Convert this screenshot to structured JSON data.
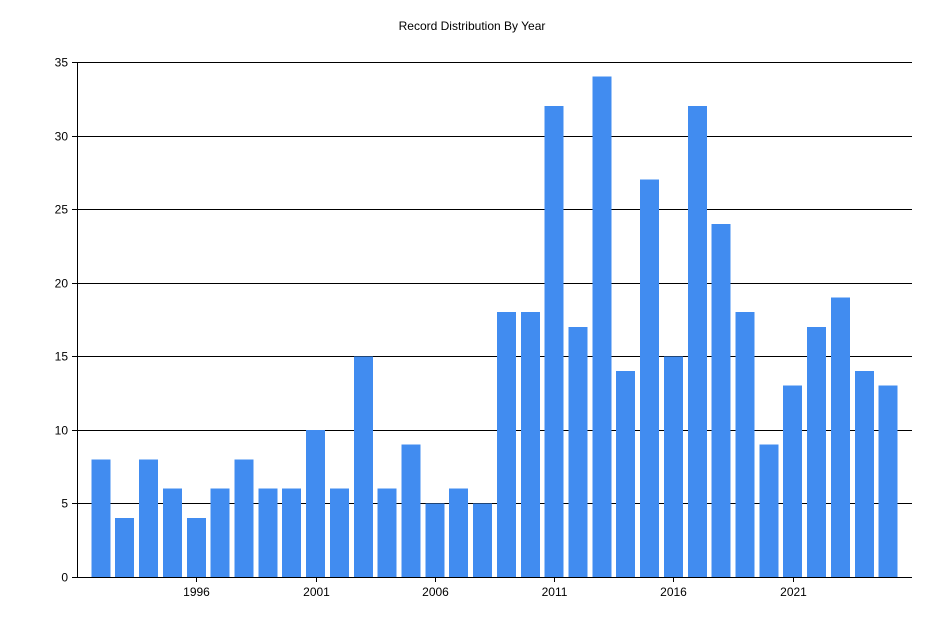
{
  "chart_data": {
    "type": "bar",
    "title": "Record Distribution By Year",
    "xlabel": "",
    "ylabel": "",
    "x": [
      1992,
      1993,
      1994,
      1995,
      1996,
      1997,
      1998,
      1999,
      2000,
      2001,
      2002,
      2003,
      2004,
      2005,
      2006,
      2007,
      2008,
      2009,
      2010,
      2011,
      2012,
      2013,
      2014,
      2015,
      2016,
      2017,
      2018,
      2019,
      2020,
      2021,
      2022,
      2023,
      2024,
      2025
    ],
    "values": [
      8,
      4,
      8,
      6,
      4,
      6,
      8,
      6,
      6,
      10,
      6,
      15,
      6,
      9,
      5,
      6,
      5,
      18,
      18,
      32,
      17,
      34,
      14,
      27,
      15,
      32,
      24,
      18,
      9,
      13,
      17,
      19,
      14,
      13
    ],
    "x_tick_labels": [
      "1996",
      "2001",
      "2006",
      "2011",
      "2016",
      "2021"
    ],
    "y_tick_labels": [
      "0",
      "5",
      "10",
      "15",
      "20",
      "25",
      "30",
      "35"
    ],
    "ylim": [
      0,
      35
    ],
    "grid": true,
    "legend": "none",
    "bar_color": "#418CF0"
  }
}
